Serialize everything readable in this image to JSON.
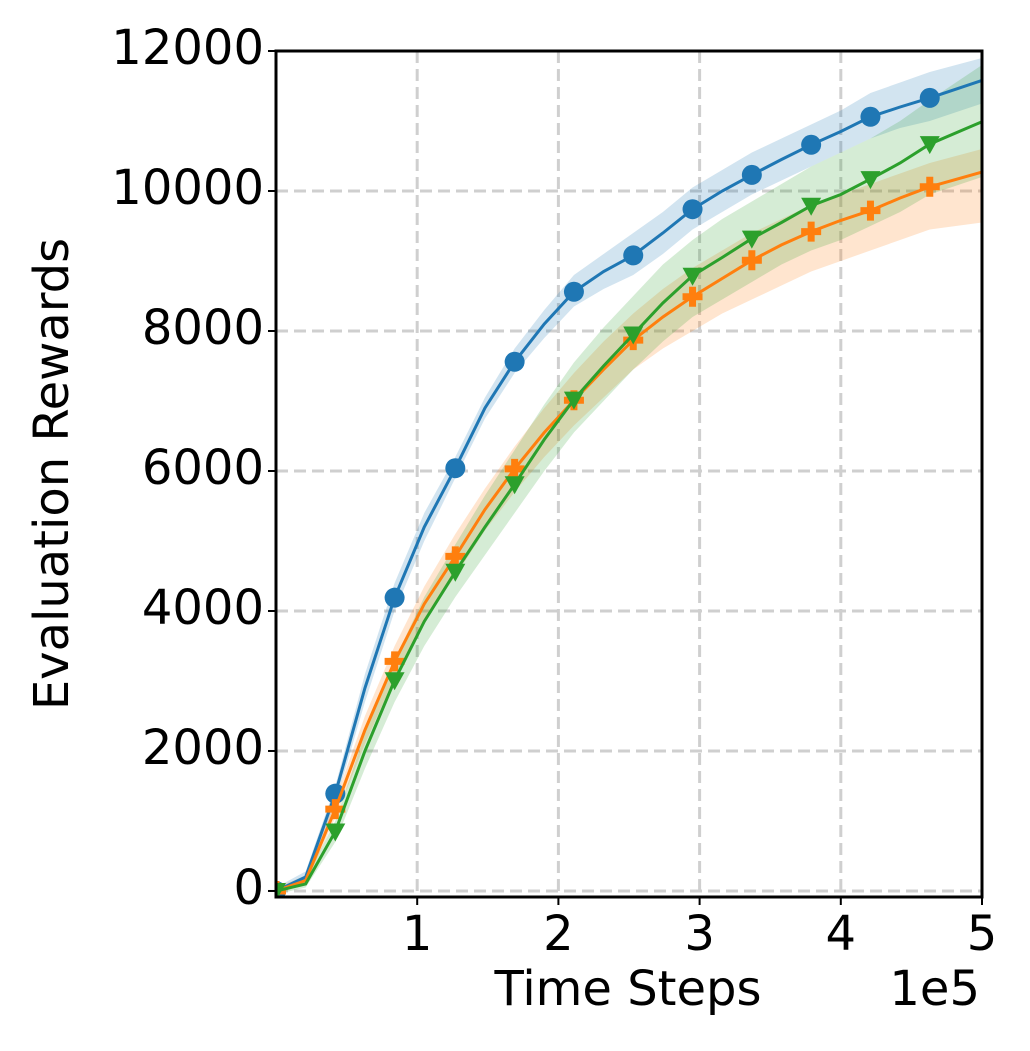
{
  "chart_data": {
    "type": "line",
    "x_label": "Time Steps",
    "y_label": "Evaluation Rewards",
    "x_offset_label": "1e5",
    "x": [
      0,
      0.21,
      0.42,
      0.63,
      0.84,
      1.05,
      1.27,
      1.48,
      1.69,
      1.9,
      2.11,
      2.32,
      2.53,
      2.74,
      2.95,
      3.16,
      3.37,
      3.58,
      3.79,
      4.0,
      4.21,
      4.42,
      4.63,
      5.0
    ],
    "markevery": 2,
    "series": [
      {
        "color": "#1f77b4",
        "marker": "circle",
        "values": [
          0,
          200,
          1390,
          2900,
          4190,
          5200,
          6040,
          6900,
          7560,
          8100,
          8560,
          8850,
          9080,
          9400,
          9740,
          10000,
          10230,
          10450,
          10660,
          10850,
          11060,
          11200,
          11330,
          11580
        ],
        "lower": [
          -50,
          120,
          1250,
          2700,
          4000,
          5000,
          5900,
          6750,
          7400,
          7900,
          8350,
          8600,
          8800,
          9100,
          9450,
          9700,
          9950,
          10150,
          10350,
          10550,
          10750,
          10900,
          11000,
          11250
        ],
        "upper": [
          50,
          280,
          1500,
          3100,
          4400,
          5400,
          6200,
          7050,
          7750,
          8300,
          8800,
          9100,
          9400,
          9700,
          10050,
          10300,
          10550,
          10750,
          10950,
          11150,
          11400,
          11550,
          11700,
          11900
        ]
      },
      {
        "color": "#ff7f0e",
        "marker": "plus",
        "values": [
          0,
          150,
          1170,
          2300,
          3280,
          4100,
          4780,
          5450,
          6030,
          6550,
          7010,
          7450,
          7870,
          8200,
          8490,
          8750,
          9010,
          9230,
          9420,
          9580,
          9720,
          9900,
          10060,
          10270
        ],
        "lower": [
          -50,
          100,
          1050,
          2100,
          3050,
          3850,
          4500,
          5150,
          5700,
          6200,
          6650,
          7050,
          7450,
          7750,
          8000,
          8250,
          8450,
          8650,
          8850,
          9000,
          9150,
          9300,
          9450,
          9550
        ],
        "upper": [
          50,
          220,
          1300,
          2500,
          3500,
          4350,
          5100,
          5750,
          6350,
          6900,
          7400,
          7850,
          8250,
          8600,
          8900,
          9150,
          9400,
          9600,
          9800,
          9950,
          10100,
          10250,
          10400,
          10600
        ]
      },
      {
        "color": "#2ca02c",
        "marker": "triangle-down",
        "values": [
          0,
          100,
          850,
          2000,
          3010,
          3850,
          4560,
          5200,
          5810,
          6450,
          7020,
          7500,
          7950,
          8400,
          8790,
          9050,
          9320,
          9550,
          9790,
          9950,
          10170,
          10400,
          10670,
          10990
        ],
        "lower": [
          -50,
          50,
          700,
          1750,
          2700,
          3500,
          4200,
          4800,
          5400,
          6000,
          6550,
          7000,
          7450,
          7850,
          8200,
          8450,
          8700,
          8950,
          9150,
          9300,
          9500,
          9700,
          9950,
          10200
        ],
        "upper": [
          50,
          180,
          1000,
          2250,
          3300,
          4200,
          4950,
          5650,
          6300,
          6950,
          7550,
          8050,
          8500,
          8950,
          9300,
          9600,
          9850,
          10100,
          10350,
          10550,
          10750,
          11000,
          11300,
          11800
        ]
      }
    ],
    "xlim": [
      0,
      5
    ],
    "xticks": [
      1,
      2,
      3,
      4,
      5
    ],
    "ylim": [
      -86,
      12000
    ],
    "yticks": [
      0,
      2000,
      4000,
      6000,
      8000,
      10000,
      12000
    ],
    "grid": true
  }
}
